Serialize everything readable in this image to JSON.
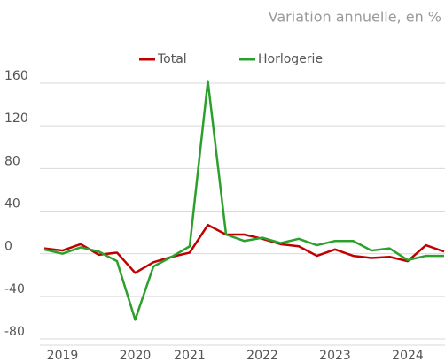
{
  "chart_data": {
    "type": "line",
    "title": "Variation annuelle, en %",
    "categories": [
      null,
      "2019",
      null,
      null,
      null,
      "2020",
      null,
      null,
      "2021",
      null,
      null,
      null,
      "2022",
      null,
      null,
      null,
      "2023",
      null,
      null,
      null,
      "2024",
      null,
      null
    ],
    "series": [
      {
        "name": "Total",
        "color": "#c00000",
        "values": [
          5,
          3,
          9,
          -1,
          1,
          -18,
          -8,
          -3,
          1,
          27,
          18,
          18,
          14,
          9,
          7,
          -2,
          4,
          -2,
          -4,
          -3,
          -7,
          8,
          2
        ]
      },
      {
        "name": "Horlogerie",
        "color": "#2ca02c",
        "values": [
          4,
          0,
          6,
          2,
          -7,
          -62,
          -12,
          -3,
          7,
          162,
          18,
          12,
          15,
          10,
          14,
          8,
          12,
          12,
          3,
          5,
          -6,
          -2,
          -2
        ]
      }
    ],
    "ylim": [
      -80,
      160
    ],
    "yticks": [
      -80,
      -40,
      0,
      40,
      80,
      120,
      160
    ],
    "grid": true,
    "legend": "top"
  }
}
